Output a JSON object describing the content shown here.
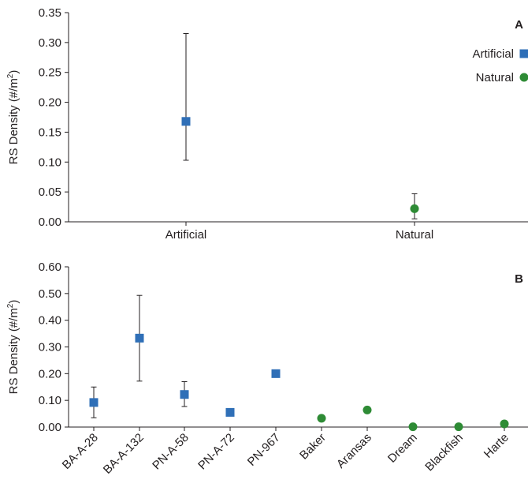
{
  "colors": {
    "artificial": "#2f6fb7",
    "natural": "#2e8b35",
    "axis": "#231f20",
    "errorbar": "#231f20"
  },
  "chart_data": [
    {
      "type": "scatter",
      "panel": "A",
      "ylabel_main": "RS Density (#/m",
      "ylabel_sup": "2",
      "ylabel_end": ")",
      "ylim": [
        0,
        0.35
      ],
      "yticks": [
        "0.00",
        "0.05",
        "0.10",
        "0.15",
        "0.20",
        "0.25",
        "0.30",
        "0.35"
      ],
      "categories": [
        "Artificial",
        "Natural"
      ],
      "grid": false,
      "legend_position": "top-right",
      "legend": [
        {
          "name": "Artificial",
          "marker": "square"
        },
        {
          "name": "Natural",
          "marker": "circle"
        }
      ],
      "points": [
        {
          "category": "Artificial",
          "group": "Artificial",
          "y": 0.168,
          "err_low": 0.103,
          "err_high": 0.315
        },
        {
          "category": "Natural",
          "group": "Natural",
          "y": 0.022,
          "err_low": 0.005,
          "err_high": 0.047
        }
      ]
    },
    {
      "type": "scatter",
      "panel": "B",
      "ylabel_main": "RS Density (#/m",
      "ylabel_sup": "2",
      "ylabel_end": ")",
      "ylim": [
        0,
        0.6
      ],
      "yticks": [
        "0.00",
        "0.10",
        "0.20",
        "0.30",
        "0.40",
        "0.50",
        "0.60"
      ],
      "categories": [
        "BA-A-28",
        "BA-A-132",
        "PN-A-58",
        "PN-A-72",
        "PN-967",
        "Baker",
        "Aransas",
        "Dream",
        "Blackfish",
        "Harte"
      ],
      "grid": false,
      "points": [
        {
          "category": "BA-A-28",
          "group": "Artificial",
          "y": 0.092,
          "err_low": 0.035,
          "err_high": 0.15
        },
        {
          "category": "BA-A-132",
          "group": "Artificial",
          "y": 0.333,
          "err_low": 0.172,
          "err_high": 0.493
        },
        {
          "category": "PN-A-58",
          "group": "Artificial",
          "y": 0.122,
          "err_low": 0.077,
          "err_high": 0.17
        },
        {
          "category": "PN-A-72",
          "group": "Artificial",
          "y": 0.055
        },
        {
          "category": "PN-967",
          "group": "Artificial",
          "y": 0.2
        },
        {
          "category": "Baker",
          "group": "Natural",
          "y": 0.033
        },
        {
          "category": "Aransas",
          "group": "Natural",
          "y": 0.064
        },
        {
          "category": "Dream",
          "group": "Natural",
          "y": 0.001
        },
        {
          "category": "Blackfish",
          "group": "Natural",
          "y": 0.001
        },
        {
          "category": "Harte",
          "group": "Natural",
          "y": 0.012
        }
      ]
    }
  ]
}
